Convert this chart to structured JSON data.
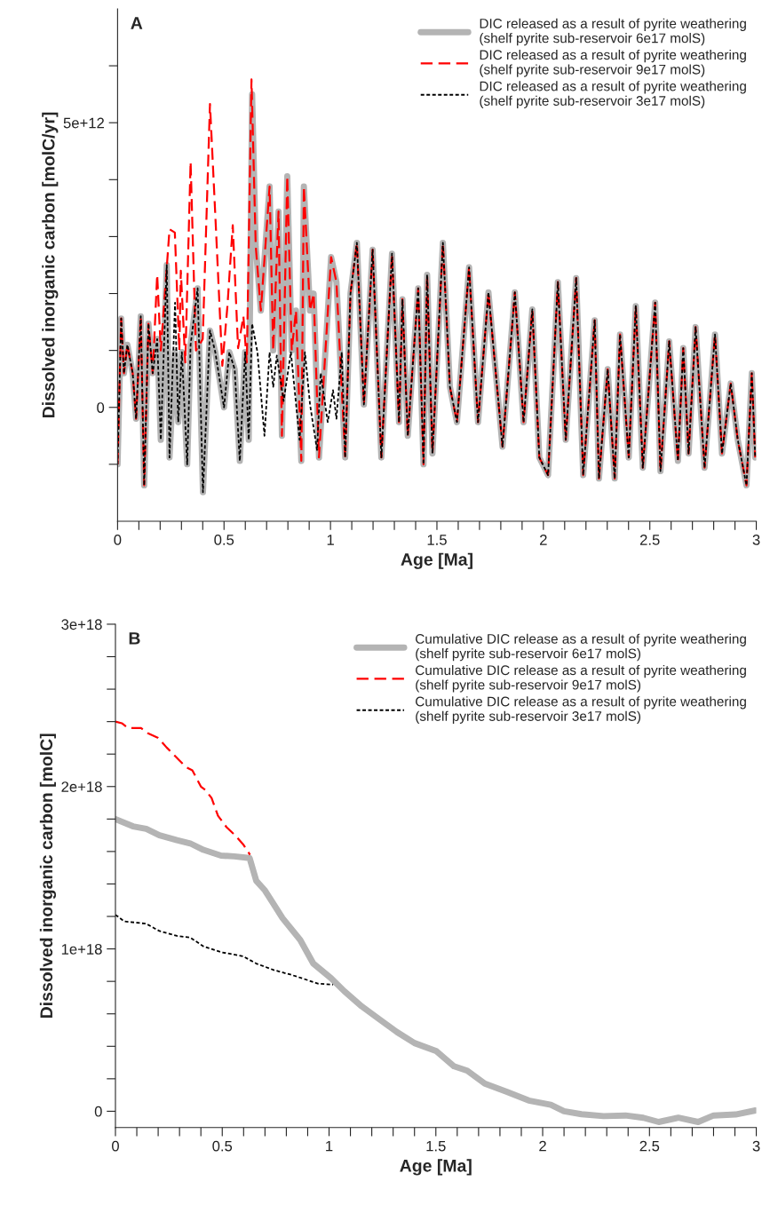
{
  "chart_data": [
    {
      "type": "line",
      "title": "A",
      "xlabel": "Age [Ma]",
      "ylabel": "Dissolved inorganic carbon [molC/yr]",
      "legend": "top right",
      "xlim": [
        0,
        3
      ],
      "ylim": [
        -2000000000000.0,
        7000000000000.0
      ],
      "xticks": [
        0,
        {
          "value": 0.1,
          "label": null
        },
        {
          "value": 0.2,
          "label": null
        },
        {
          "value": 0.3,
          "label": null
        },
        {
          "value": 0.4,
          "label": null
        },
        0.5,
        {
          "value": 0.6,
          "label": null
        },
        {
          "value": 0.7,
          "label": null
        },
        {
          "value": 0.8,
          "label": null
        },
        {
          "value": 0.9,
          "label": null
        },
        1,
        {
          "value": 1.1,
          "label": null
        },
        {
          "value": 1.2,
          "label": null
        },
        {
          "value": 1.3,
          "label": null
        },
        {
          "value": 1.4,
          "label": null
        },
        1.5,
        {
          "value": 1.6,
          "label": null
        },
        {
          "value": 1.7,
          "label": null
        },
        {
          "value": 1.8,
          "label": null
        },
        {
          "value": 1.9,
          "label": null
        },
        2,
        {
          "value": 2.1,
          "label": null
        },
        {
          "value": 2.2,
          "label": null
        },
        {
          "value": 2.3,
          "label": null
        },
        {
          "value": 2.4,
          "label": null
        },
        2.5,
        {
          "value": 2.6,
          "label": null
        },
        {
          "value": 2.7,
          "label": null
        },
        {
          "value": 2.8,
          "label": null
        },
        {
          "value": 2.9,
          "label": null
        },
        3
      ],
      "yticks": [
        {
          "value": -1000000000000.0,
          "label": null
        },
        0,
        {
          "value": 1000000000000.0,
          "label": null
        },
        {
          "value": 2000000000000.0,
          "label": null
        },
        {
          "value": 3000000000000.0,
          "label": null
        },
        {
          "value": 4000000000000.0,
          "label": null
        },
        {
          "value": 5000000000000.0,
          "label": "5e+12"
        },
        {
          "value": 6000000000000.0,
          "label": null
        }
      ],
      "series": [
        {
          "name": "DIC released as a result of pyrite weathering\n(shelf pyrite sub-reservoir 6e17 molS)",
          "color": "#b4b4b4",
          "line_style": "solid",
          "x": [
            0,
            0.017,
            0.03,
            0.046,
            0.071,
            0.087,
            0.109,
            0.125,
            0.145,
            0.165,
            0.186,
            0.203,
            0.231,
            0.244,
            0.269,
            0.285,
            0.302,
            0.327,
            0.343,
            0.376,
            0.401,
            0.434,
            0.459,
            0.5,
            0.525,
            0.55,
            0.574,
            0.599,
            0.616,
            0.632,
            0.649,
            0.673,
            0.714,
            0.731,
            0.756,
            0.772,
            0.797,
            0.818,
            0.838,
            0.863,
            0.875,
            0.904,
            0.921,
            0.946,
            1.003,
            1.028,
            1.069,
            1.094,
            1.124,
            1.157,
            1.198,
            1.239,
            1.289,
            1.322,
            1.338,
            1.363,
            1.412,
            1.437,
            1.454,
            1.479,
            1.528,
            1.561,
            1.594,
            1.651,
            1.693,
            1.742,
            1.808,
            1.866,
            1.907,
            1.948,
            1.981,
            2.022,
            2.068,
            2.105,
            2.154,
            2.187,
            2.241,
            2.261,
            2.302,
            2.335,
            2.36,
            2.401,
            2.434,
            2.467,
            2.525,
            2.55,
            2.591,
            2.632,
            2.657,
            2.682,
            2.715,
            2.757,
            2.806,
            2.839,
            2.88,
            2.913,
            2.954,
            2.979,
            2.995
          ],
          "values": [
            -1000000000000.0,
            1560000000000.0,
            600000000000.0,
            1100000000000.0,
            600000000000.0,
            -200000000000.0,
            1600000000000.0,
            -1370000000000.0,
            1470000000000.0,
            600000000000.0,
            1200000000000.0,
            -570000000000.0,
            2500000000000.0,
            -880000000000.0,
            970000000000.0,
            -260000000000.0,
            970000000000.0,
            -1000000000000.0,
            1100000000000.0,
            2090000000000.0,
            -1490000000000.0,
            1350000000000.0,
            970000000000.0,
            0,
            970000000000.0,
            670000000000.0,
            -940000000000.0,
            970000000000.0,
            -570000000000.0,
            5500000000000.0,
            2830000000000.0,
            1700000000000.0,
            3880000000000.0,
            1000000000000.0,
            3440000000000.0,
            -500000000000.0,
            4060000000000.0,
            1000000000000.0,
            1700000000000.0,
            -940000000000.0,
            3880000000000.0,
            1700000000000.0,
            2000000000000.0,
            -880000000000.0,
            2640000000000.0,
            2200000000000.0,
            -880000000000.0,
            2000000000000.0,
            2890000000000.0,
            50000000000.0,
            2770000000000.0,
            -880000000000.0,
            2700000000000.0,
            -260000000000.0,
            1900000000000.0,
            -500000000000.0,
            2090000000000.0,
            -1000000000000.0,
            2330000000000.0,
            -810000000000.0,
            2890000000000.0,
            360000000000.0,
            -260000000000.0,
            2460000000000.0,
            -260000000000.0,
            2020000000000.0,
            -690000000000.0,
            2020000000000.0,
            -260000000000.0,
            1720000000000.0,
            -880000000000.0,
            -1190000000000.0,
            2200000000000.0,
            -570000000000.0,
            2270000000000.0,
            -1190000000000.0,
            1530000000000.0,
            -1250000000000.0,
            670000000000.0,
            -1250000000000.0,
            1280000000000.0,
            -880000000000.0,
            1780000000000.0,
            -1060000000000.0,
            1840000000000.0,
            -1120000000000.0,
            1160000000000.0,
            -940000000000.0,
            1040000000000.0,
            -810000000000.0,
            1410000000000.0,
            -1060000000000.0,
            1280000000000.0,
            -810000000000.0,
            420000000000.0,
            -570000000000.0,
            -1370000000000.0,
            600000000000.0,
            -880000000000.0
          ]
        },
        {
          "name": "DIC released as a result of pyrite weathering\n(shelf pyrite sub-reservoir 9e17 molS)",
          "color": "#ff0000",
          "line_style": "dashed",
          "x": [
            0,
            0.017,
            0.03,
            0.046,
            0.071,
            0.087,
            0.109,
            0.125,
            0.145,
            0.165,
            0.186,
            0.203,
            0.244,
            0.269,
            0.29,
            0.297,
            0.318,
            0.343,
            0.368,
            0.4,
            0.434,
            0.459,
            0.492,
            0.516,
            0.541,
            0.566,
            0.591,
            0.607,
            0.629,
            0.649,
            0.673,
            0.714,
            0.731,
            0.756,
            0.772,
            0.797,
            0.818,
            0.838,
            0.863,
            0.875,
            0.904,
            0.921,
            0.946,
            1.003,
            1.028,
            1.069,
            1.094,
            1.124,
            1.157,
            1.198,
            1.239,
            1.289,
            1.322,
            1.338,
            1.363,
            1.412,
            1.437,
            1.454,
            1.479,
            1.528,
            1.561,
            1.594,
            1.651,
            1.693,
            1.742,
            1.808,
            1.866,
            1.907,
            1.948,
            1.981,
            2.022,
            2.068,
            2.105,
            2.154,
            2.187,
            2.241,
            2.261,
            2.302,
            2.335,
            2.36,
            2.401,
            2.434,
            2.467,
            2.525,
            2.55,
            2.591,
            2.632,
            2.657,
            2.682,
            2.715,
            2.757,
            2.806,
            2.839,
            2.88,
            2.913,
            2.954,
            2.979,
            2.995
          ],
          "values": [
            -1000000000000.0,
            1560000000000.0,
            600000000000.0,
            1100000000000.0,
            600000000000.0,
            -200000000000.0,
            1600000000000.0,
            -1370000000000.0,
            1470000000000.0,
            600000000000.0,
            2330000000000.0,
            1000000000000.0,
            3130000000000.0,
            3070000000000.0,
            1000000000000.0,
            2400000000000.0,
            790000000000.0,
            4310000000000.0,
            1000000000000.0,
            1200000000000.0,
            5330000000000.0,
            3380000000000.0,
            730000000000.0,
            1780000000000.0,
            3200000000000.0,
            1040000000000.0,
            1600000000000.0,
            790000000000.0,
            5760000000000.0,
            2830000000000.0,
            1700000000000.0,
            3880000000000.0,
            1000000000000.0,
            3440000000000.0,
            -500000000000.0,
            4060000000000.0,
            1000000000000.0,
            1700000000000.0,
            -940000000000.0,
            3880000000000.0,
            1700000000000.0,
            2000000000000.0,
            -880000000000.0,
            2640000000000.0,
            2200000000000.0,
            -880000000000.0,
            2000000000000.0,
            2890000000000.0,
            50000000000.0,
            2770000000000.0,
            -880000000000.0,
            2700000000000.0,
            -260000000000.0,
            1900000000000.0,
            -500000000000.0,
            2090000000000.0,
            -1000000000000.0,
            2330000000000.0,
            -810000000000.0,
            2890000000000.0,
            360000000000.0,
            -260000000000.0,
            2460000000000.0,
            -260000000000.0,
            2020000000000.0,
            -690000000000.0,
            2020000000000.0,
            -260000000000.0,
            1720000000000.0,
            -880000000000.0,
            -1190000000000.0,
            2200000000000.0,
            -570000000000.0,
            2270000000000.0,
            -1190000000000.0,
            1530000000000.0,
            -1250000000000.0,
            670000000000.0,
            -1250000000000.0,
            1280000000000.0,
            -880000000000.0,
            1780000000000.0,
            -1060000000000.0,
            1840000000000.0,
            -1120000000000.0,
            1160000000000.0,
            -940000000000.0,
            1040000000000.0,
            -810000000000.0,
            1410000000000.0,
            -1060000000000.0,
            1280000000000.0,
            -810000000000.0,
            420000000000.0,
            -570000000000.0,
            -1370000000000.0,
            600000000000.0,
            -880000000000.0
          ]
        },
        {
          "name": "DIC released as a result of pyrite weathering\n(shelf pyrite sub-reservoir 3e17 molS)",
          "color": "#000000",
          "line_style": "dotted",
          "x": [
            0,
            0.017,
            0.03,
            0.046,
            0.071,
            0.087,
            0.109,
            0.125,
            0.145,
            0.165,
            0.186,
            0.203,
            0.231,
            0.244,
            0.27,
            0.285,
            0.302,
            0.327,
            0.343,
            0.376,
            0.401,
            0.434,
            0.459,
            0.5,
            0.525,
            0.55,
            0.574,
            0.599,
            0.616,
            0.632,
            0.657,
            0.69,
            0.714,
            0.731,
            0.748,
            0.78,
            0.814,
            0.855,
            0.88,
            0.904,
            0.937,
            0.954,
            0.987,
            1.012,
            1.028,
            1.053,
            1.069,
            1.094,
            1.124,
            1.157,
            1.198,
            1.239,
            1.289,
            1.322,
            1.338,
            1.363,
            1.412,
            1.437,
            1.454,
            1.479,
            1.528,
            1.561,
            1.594,
            1.651,
            1.693,
            1.742,
            1.808,
            1.866,
            1.907,
            1.948,
            1.981,
            2.022,
            2.068,
            2.105,
            2.154,
            2.187,
            2.241,
            2.261,
            2.302,
            2.335,
            2.36,
            2.401,
            2.434,
            2.467,
            2.525,
            2.55,
            2.591,
            2.632,
            2.657,
            2.682,
            2.715,
            2.757,
            2.806,
            2.839,
            2.88,
            2.913,
            2.954,
            2.979,
            2.995
          ],
          "values": [
            -1000000000000.0,
            1560000000000.0,
            600000000000.0,
            1100000000000.0,
            600000000000.0,
            -200000000000.0,
            1600000000000.0,
            -1370000000000.0,
            1470000000000.0,
            600000000000.0,
            1200000000000.0,
            -570000000000.0,
            2500000000000.0,
            -880000000000.0,
            1840000000000.0,
            -260000000000.0,
            970000000000.0,
            -1000000000000.0,
            1100000000000.0,
            2090000000000.0,
            -1490000000000.0,
            1350000000000.0,
            970000000000.0,
            0,
            970000000000.0,
            670000000000.0,
            -940000000000.0,
            970000000000.0,
            -570000000000.0,
            1470000000000.0,
            970000000000.0,
            -500000000000.0,
            970000000000.0,
            360000000000.0,
            910000000000.0,
            110000000000.0,
            970000000000.0,
            -570000000000.0,
            970000000000.0,
            50000000000.0,
            -750000000000.0,
            600000000000.0,
            -260000000000.0,
            300000000000.0,
            -200000000000.0,
            970000000000.0,
            -880000000000.0,
            2000000000000.0,
            2890000000000.0,
            50000000000.0,
            2770000000000.0,
            -880000000000.0,
            2700000000000.0,
            -260000000000.0,
            1900000000000.0,
            -500000000000.0,
            2090000000000.0,
            -1000000000000.0,
            2330000000000.0,
            -810000000000.0,
            2890000000000.0,
            360000000000.0,
            -260000000000.0,
            2460000000000.0,
            -260000000000.0,
            2020000000000.0,
            -690000000000.0,
            2020000000000.0,
            -260000000000.0,
            1720000000000.0,
            -880000000000.0,
            -1190000000000.0,
            2200000000000.0,
            -570000000000.0,
            2270000000000.0,
            -1190000000000.0,
            1530000000000.0,
            -1250000000000.0,
            670000000000.0,
            -1250000000000.0,
            1280000000000.0,
            -880000000000.0,
            1780000000000.0,
            -1060000000000.0,
            1840000000000.0,
            -1120000000000.0,
            1160000000000.0,
            -940000000000.0,
            1040000000000.0,
            -810000000000.0,
            1410000000000.0,
            -1060000000000.0,
            1280000000000.0,
            -810000000000.0,
            420000000000.0,
            -570000000000.0,
            -1370000000000.0,
            600000000000.0,
            -880000000000.0
          ]
        }
      ]
    },
    {
      "type": "line",
      "title": "B",
      "xlabel": "Age [Ma]",
      "ylabel": "Dissolved inorganic carbon [molC]",
      "legend": "top right",
      "xlim": [
        0,
        3
      ],
      "ylim": [
        -1e+17,
        3e+18
      ],
      "xticks": [
        0,
        {
          "value": 0.1,
          "label": null
        },
        {
          "value": 0.2,
          "label": null
        },
        {
          "value": 0.3,
          "label": null
        },
        {
          "value": 0.4,
          "label": null
        },
        0.5,
        {
          "value": 0.6,
          "label": null
        },
        {
          "value": 0.7,
          "label": null
        },
        {
          "value": 0.8,
          "label": null
        },
        {
          "value": 0.9,
          "label": null
        },
        1,
        {
          "value": 1.1,
          "label": null
        },
        {
          "value": 1.2,
          "label": null
        },
        {
          "value": 1.3,
          "label": null
        },
        {
          "value": 1.4,
          "label": null
        },
        1.5,
        {
          "value": 1.6,
          "label": null
        },
        {
          "value": 1.7,
          "label": null
        },
        {
          "value": 1.8,
          "label": null
        },
        {
          "value": 1.9,
          "label": null
        },
        2,
        {
          "value": 2.1,
          "label": null
        },
        {
          "value": 2.2,
          "label": null
        },
        {
          "value": 2.3,
          "label": null
        },
        {
          "value": 2.4,
          "label": null
        },
        2.5,
        {
          "value": 2.6,
          "label": null
        },
        {
          "value": 2.7,
          "label": null
        },
        {
          "value": 2.8,
          "label": null
        },
        {
          "value": 2.9,
          "label": null
        },
        3
      ],
      "yticks": [
        0,
        {
          "value": 2e+17,
          "label": null
        },
        {
          "value": 4e+17,
          "label": null
        },
        {
          "value": 6e+17,
          "label": null
        },
        {
          "value": 8e+17,
          "label": null
        },
        {
          "value": 1e+18,
          "label": "1e+18"
        },
        {
          "value": 1.2e+18,
          "label": null
        },
        {
          "value": 1.4e+18,
          "label": null
        },
        {
          "value": 1.6e+18,
          "label": null
        },
        {
          "value": 1.8e+18,
          "label": null
        },
        {
          "value": 2e+18,
          "label": "2e+18"
        },
        {
          "value": 2.2e+18,
          "label": null
        },
        {
          "value": 2.4e+18,
          "label": null
        },
        {
          "value": 2.6e+18,
          "label": null
        },
        {
          "value": 2.8e+18,
          "label": null
        },
        {
          "value": 3e+18,
          "label": "3e+18"
        }
      ],
      "series": [
        {
          "name": "Cumulative DIC release as a result of pyrite weathering\n(shelf pyrite sub-reservoir 6e17 molS)",
          "color": "#b4b4b4",
          "line_style": "solid",
          "x": [
            0,
            0.082,
            0.144,
            0.206,
            0.288,
            0.35,
            0.412,
            0.494,
            0.556,
            0.628,
            0.659,
            0.7,
            0.782,
            0.865,
            0.926,
            1.009,
            1.071,
            1.153,
            1.235,
            1.318,
            1.4,
            1.503,
            1.585,
            1.647,
            1.729,
            1.832,
            1.935,
            2.038,
            2.1,
            2.182,
            2.285,
            2.388,
            2.471,
            2.543,
            2.635,
            2.728,
            2.8,
            2.903,
            2.996
          ],
          "values": [
            1.8e+18,
            1.755e+18,
            1.74e+18,
            1.7e+18,
            1.67e+18,
            1.65e+18,
            1.61e+18,
            1.575e+18,
            1.57e+18,
            1.56e+18,
            1.42e+18,
            1.36e+18,
            1.19e+18,
            1.055e+18,
            9.1e+17,
            8.2e+17,
            7.4e+17,
            6.46e+17,
            5.67e+17,
            4.88e+17,
            4.2e+17,
            3.7e+17,
            2.77e+17,
            2.5e+17,
            1.7e+17,
            1.2e+17,
            6.6e+16,
            4e+16,
            0,
            -1.8e+16,
            -3e+16,
            -2.6e+16,
            -4e+16,
            -6.6e+16,
            -4e+16,
            -6.6e+16,
            -2.6e+16,
            -2e+16,
            5000000000000000.0
          ]
        },
        {
          "name": "Cumulative DIC release as a result of pyrite weathering\n(shelf pyrite sub-reservoir 9e17 molS)",
          "color": "#ff0000",
          "line_style": "dashed",
          "x": [
            0,
            0.03,
            0.06,
            0.12,
            0.15,
            0.2,
            0.24,
            0.3,
            0.33,
            0.36,
            0.4,
            0.42,
            0.45,
            0.48,
            0.52,
            0.56,
            0.6,
            0.63
          ],
          "values": [
            2.4e+18,
            2.39e+18,
            2.36e+18,
            2.36e+18,
            2.33e+18,
            2.3e+18,
            2.24e+18,
            2.16e+18,
            2.12e+18,
            2.1e+18,
            2e+18,
            1.98e+18,
            1.93e+18,
            1.82e+18,
            1.75e+18,
            1.7e+18,
            1.64e+18,
            1.58e+18
          ]
        },
        {
          "name": "Cumulative DIC release as a result of pyrite weathering\n(shelf pyrite sub-reservoir 3e17 molS)",
          "color": "#000000",
          "line_style": "dotted",
          "x": [
            0,
            0.041,
            0.144,
            0.206,
            0.288,
            0.35,
            0.412,
            0.494,
            0.597,
            0.659,
            0.741,
            0.824,
            0.906,
            0.947,
            1.019
          ],
          "values": [
            1.21e+18,
            1.17e+18,
            1.155e+18,
            1.11e+18,
            1.08e+18,
            1.07e+18,
            1.016e+18,
            9.8e+17,
            9.55e+17,
            9.1e+17,
            8.7e+17,
            8.4e+17,
            8.05e+17,
            7.86e+17,
            7.8e+17
          ]
        }
      ]
    }
  ]
}
